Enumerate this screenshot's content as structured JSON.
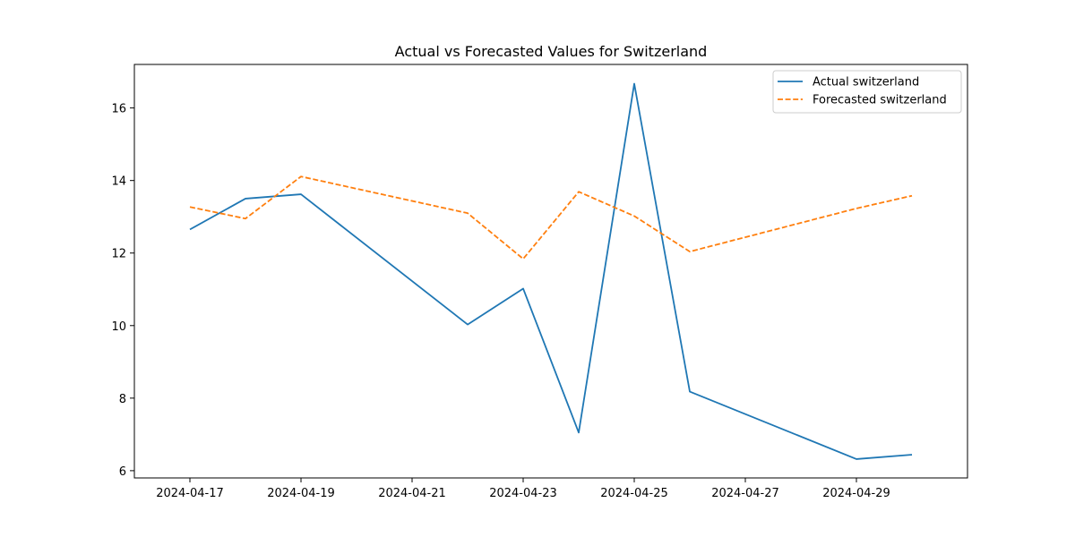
{
  "chart_data": {
    "type": "line",
    "title": "Actual vs Forecasted Values for Switzerland",
    "xlabel": "",
    "ylabel": "",
    "x": [
      "2024-04-17",
      "2024-04-18",
      "2024-04-19",
      "2024-04-22",
      "2024-04-23",
      "2024-04-24",
      "2024-04-25",
      "2024-04-26",
      "2024-04-29",
      "2024-04-30"
    ],
    "x_tick_labels": [
      "2024-04-17",
      "2024-04-19",
      "2024-04-21",
      "2024-04-23",
      "2024-04-25",
      "2024-04-27",
      "2024-04-29"
    ],
    "xlim": [
      "2024-04-16",
      "2024-05-01"
    ],
    "y_ticks": [
      6,
      8,
      10,
      12,
      14,
      16
    ],
    "y_tick_labels": [
      "6",
      "8",
      "10",
      "12",
      "14",
      "16"
    ],
    "ylim": [
      5.8,
      17.2
    ],
    "grid": false,
    "legend_position": "top-right",
    "series": [
      {
        "name": "Actual switzerland",
        "color": "#1f77b4",
        "line_style": "solid",
        "values": [
          12.65,
          13.5,
          13.62,
          10.03,
          11.02,
          7.05,
          16.67,
          8.18,
          6.32,
          6.44
        ]
      },
      {
        "name": "Forecasted switzerland",
        "color": "#ff7f0e",
        "line_style": "dashed",
        "values": [
          13.27,
          12.95,
          14.11,
          13.1,
          11.84,
          13.69,
          13.02,
          12.04,
          13.23,
          13.58
        ]
      }
    ]
  }
}
